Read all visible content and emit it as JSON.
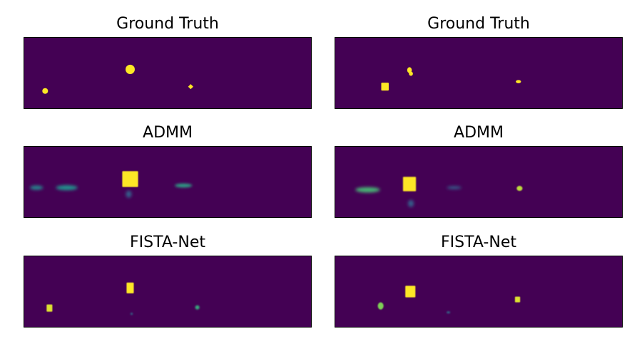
{
  "figure": {
    "colors": {
      "background": "#440154",
      "peak": "#fde725",
      "mid": "#21918c",
      "low": "#3b528b",
      "frame": "#000000"
    }
  },
  "chart_data": [
    {
      "type": "heatmap",
      "title": "Ground Truth",
      "row": 0,
      "col": 0,
      "xlim": [
        0,
        1
      ],
      "ylim": [
        0,
        1
      ],
      "colormap": "viridis",
      "axes_ticks": false,
      "blobs": [
        {
          "x": 0.075,
          "y": 0.25,
          "w": 0.02,
          "h": 0.08,
          "intensity": 1.0,
          "shape": "circle",
          "blur": 0
        },
        {
          "x": 0.37,
          "y": 0.55,
          "w": 0.032,
          "h": 0.13,
          "intensity": 1.0,
          "shape": "circle",
          "blur": 0
        },
        {
          "x": 0.58,
          "y": 0.31,
          "w": 0.018,
          "h": 0.07,
          "intensity": 1.0,
          "shape": "diamond",
          "blur": 0
        }
      ]
    },
    {
      "type": "heatmap",
      "title": "Ground Truth",
      "row": 0,
      "col": 1,
      "xlim": [
        0,
        1
      ],
      "ylim": [
        0,
        1
      ],
      "colormap": "viridis",
      "axes_ticks": false,
      "blobs": [
        {
          "x": 0.175,
          "y": 0.31,
          "w": 0.026,
          "h": 0.11,
          "intensity": 1.0,
          "shape": "square",
          "blur": 0
        },
        {
          "x": 0.26,
          "y": 0.54,
          "w": 0.016,
          "h": 0.08,
          "intensity": 1.0,
          "shape": "circle",
          "blur": 0
        },
        {
          "x": 0.265,
          "y": 0.49,
          "w": 0.014,
          "h": 0.06,
          "intensity": 1.0,
          "shape": "circle",
          "blur": 0
        },
        {
          "x": 0.638,
          "y": 0.38,
          "w": 0.018,
          "h": 0.045,
          "intensity": 1.0,
          "shape": "circle",
          "blur": 0
        }
      ]
    },
    {
      "type": "heatmap",
      "title": "ADMM",
      "row": 1,
      "col": 0,
      "xlim": [
        0,
        1
      ],
      "ylim": [
        0,
        1
      ],
      "colormap": "viridis",
      "axes_ticks": false,
      "blobs": [
        {
          "x": 0.045,
          "y": 0.42,
          "w": 0.045,
          "h": 0.06,
          "intensity": 0.45,
          "shape": "ellipse",
          "blur": 2
        },
        {
          "x": 0.15,
          "y": 0.42,
          "w": 0.075,
          "h": 0.07,
          "intensity": 0.5,
          "shape": "ellipse",
          "blur": 2
        },
        {
          "x": 0.37,
          "y": 0.54,
          "w": 0.055,
          "h": 0.22,
          "intensity": 1.0,
          "shape": "square",
          "blur": 0.6
        },
        {
          "x": 0.365,
          "y": 0.33,
          "w": 0.02,
          "h": 0.1,
          "intensity": 0.3,
          "shape": "ellipse",
          "blur": 2
        },
        {
          "x": 0.555,
          "y": 0.45,
          "w": 0.06,
          "h": 0.055,
          "intensity": 0.55,
          "shape": "ellipse",
          "blur": 1.8
        }
      ]
    },
    {
      "type": "heatmap",
      "title": "ADMM",
      "row": 1,
      "col": 1,
      "xlim": [
        0,
        1
      ],
      "ylim": [
        0,
        1
      ],
      "colormap": "viridis",
      "axes_ticks": false,
      "blobs": [
        {
          "x": 0.115,
          "y": 0.39,
          "w": 0.085,
          "h": 0.075,
          "intensity": 0.65,
          "shape": "ellipse",
          "blur": 2
        },
        {
          "x": 0.26,
          "y": 0.47,
          "w": 0.045,
          "h": 0.2,
          "intensity": 1.0,
          "shape": "square",
          "blur": 0.7
        },
        {
          "x": 0.265,
          "y": 0.2,
          "w": 0.02,
          "h": 0.1,
          "intensity": 0.3,
          "shape": "ellipse",
          "blur": 2
        },
        {
          "x": 0.415,
          "y": 0.42,
          "w": 0.05,
          "h": 0.04,
          "intensity": 0.3,
          "shape": "ellipse",
          "blur": 2
        },
        {
          "x": 0.642,
          "y": 0.41,
          "w": 0.02,
          "h": 0.07,
          "intensity": 0.9,
          "shape": "circle",
          "blur": 0.8
        }
      ]
    },
    {
      "type": "heatmap",
      "title": "FISTA-Net",
      "row": 2,
      "col": 0,
      "xlim": [
        0,
        1
      ],
      "ylim": [
        0,
        1
      ],
      "colormap": "viridis",
      "axes_ticks": false,
      "blobs": [
        {
          "x": 0.09,
          "y": 0.27,
          "w": 0.02,
          "h": 0.1,
          "intensity": 0.95,
          "shape": "square",
          "blur": 0.6
        },
        {
          "x": 0.37,
          "y": 0.55,
          "w": 0.025,
          "h": 0.15,
          "intensity": 1.0,
          "shape": "square",
          "blur": 0.5
        },
        {
          "x": 0.375,
          "y": 0.19,
          "w": 0.008,
          "h": 0.03,
          "intensity": 0.35,
          "shape": "circle",
          "blur": 1
        },
        {
          "x": 0.603,
          "y": 0.28,
          "w": 0.015,
          "h": 0.06,
          "intensity": 0.6,
          "shape": "circle",
          "blur": 1
        }
      ]
    },
    {
      "type": "heatmap",
      "title": "FISTA-Net",
      "row": 2,
      "col": 1,
      "xlim": [
        0,
        1
      ],
      "ylim": [
        0,
        1
      ],
      "colormap": "viridis",
      "axes_ticks": false,
      "blobs": [
        {
          "x": 0.16,
          "y": 0.3,
          "w": 0.02,
          "h": 0.1,
          "intensity": 0.8,
          "shape": "circle",
          "blur": 0.8
        },
        {
          "x": 0.263,
          "y": 0.5,
          "w": 0.035,
          "h": 0.16,
          "intensity": 1.0,
          "shape": "square",
          "blur": 0.5
        },
        {
          "x": 0.395,
          "y": 0.21,
          "w": 0.012,
          "h": 0.03,
          "intensity": 0.35,
          "shape": "circle",
          "blur": 1
        },
        {
          "x": 0.635,
          "y": 0.39,
          "w": 0.018,
          "h": 0.08,
          "intensity": 0.95,
          "shape": "square",
          "blur": 0.6
        }
      ]
    }
  ]
}
